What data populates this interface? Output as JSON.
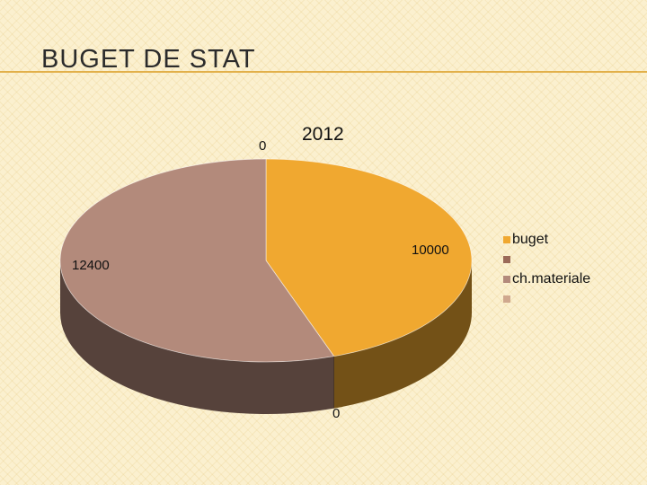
{
  "slide": {
    "title": "BUGET DE STAT"
  },
  "chart_data": {
    "type": "pie",
    "title": "2012",
    "categories": [
      "buget",
      "",
      "ch.materiale",
      ""
    ],
    "values": [
      10000,
      0,
      12400,
      0
    ],
    "colors": [
      "#f0a830",
      "#9b6a58",
      "#b38a7b",
      "#cfa88e"
    ],
    "data_labels": [
      "10000",
      "0",
      "12400",
      "0"
    ],
    "legend_position": "right",
    "three_d": true
  }
}
